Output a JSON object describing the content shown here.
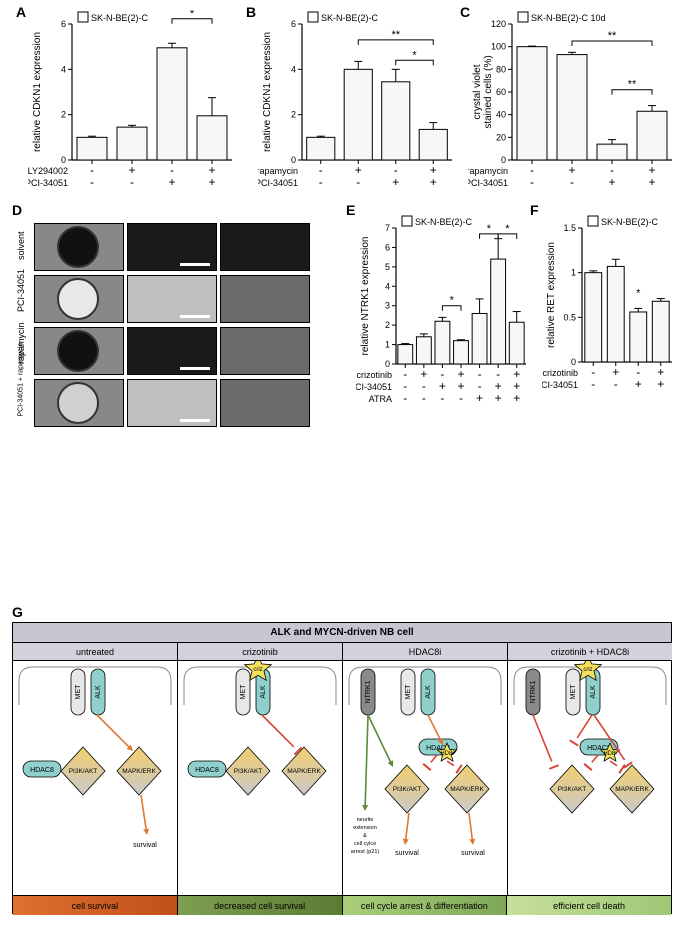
{
  "figure_width": 685,
  "figure_height": 926,
  "panels": {
    "A": {
      "label": "A",
      "cell_line": "SK-N-BE(2)-C",
      "type": "bar",
      "y_title": "relative CDKN1 expression",
      "ylim": [
        0,
        6
      ],
      "ytick_step": 2,
      "bar_fill": "#f7f7f7",
      "bar_stroke": "#000000",
      "categories": [
        "c1",
        "c2",
        "c3",
        "c4"
      ],
      "values": [
        1.0,
        1.45,
        4.95,
        1.95
      ],
      "errors": [
        0.05,
        0.08,
        0.2,
        0.8
      ],
      "treatments": [
        {
          "name": "LY294002",
          "signs": [
            "-",
            "+",
            "-",
            "+"
          ]
        },
        {
          "name": "PCI-34051",
          "signs": [
            "-",
            "-",
            "+",
            "+"
          ]
        }
      ],
      "sig": [
        {
          "from": 2,
          "to": 3,
          "text": "*"
        }
      ]
    },
    "B": {
      "label": "B",
      "cell_line": "SK-N-BE(2)-C",
      "type": "bar",
      "y_title": "relative CDKN1 expression",
      "ylim": [
        0,
        6
      ],
      "ytick_step": 2,
      "values": [
        1.0,
        4.0,
        3.45,
        1.35
      ],
      "errors": [
        0.05,
        0.35,
        0.55,
        0.3
      ],
      "treatments": [
        {
          "name": "rapamycin",
          "signs": [
            "-",
            "+",
            "-",
            "+"
          ]
        },
        {
          "name": "PCI-34051",
          "signs": [
            "-",
            "-",
            "+",
            "+"
          ]
        }
      ],
      "sig": [
        {
          "from": 1,
          "to": 3,
          "text": "**",
          "y": 5.3
        },
        {
          "from": 2,
          "to": 3,
          "text": "*",
          "y": 4.4
        }
      ]
    },
    "C": {
      "label": "C",
      "cell_line": "SK-N-BE(2)-C 10d",
      "type": "bar",
      "y_title": "crystal violet\nstained cells (%)",
      "ylim": [
        0,
        120
      ],
      "yticks": [
        0,
        20,
        40,
        60,
        80,
        100,
        120
      ],
      "values": [
        100,
        93,
        14,
        43
      ],
      "errors": [
        0.5,
        2,
        4,
        5
      ],
      "treatments": [
        {
          "name": "rapamycin",
          "signs": [
            "-",
            "+",
            "-",
            "+"
          ]
        },
        {
          "name": "PCI-34051",
          "signs": [
            "-",
            "-",
            "+",
            "+"
          ]
        }
      ],
      "sig": [
        {
          "from": 1,
          "to": 3,
          "text": "**",
          "y": 105
        },
        {
          "from": 2,
          "to": 3,
          "text": "**",
          "y": 62
        }
      ]
    },
    "D": {
      "label": "D",
      "rows": [
        "solvent",
        "PCI-34051",
        "rapamycin",
        "PCI-34051 +\nrapamycin"
      ]
    },
    "E": {
      "label": "E",
      "cell_line": "SK-N-BE(2)-C",
      "type": "bar",
      "y_title": "relative NTRK1 expression",
      "ylim": [
        0,
        7
      ],
      "yticks": [
        0,
        1,
        2,
        3,
        4,
        5,
        6,
        7
      ],
      "values": [
        1.0,
        1.4,
        2.2,
        1.2,
        2.6,
        5.4,
        2.15
      ],
      "errors": [
        0.05,
        0.15,
        0.2,
        0.05,
        0.75,
        1.05,
        0.55
      ],
      "treatments": [
        {
          "name": "crizotinib",
          "signs": [
            "-",
            "+",
            "-",
            "+",
            "-",
            "-",
            "+"
          ]
        },
        {
          "name": "PCI-34051",
          "signs": [
            "-",
            "-",
            "+",
            "+",
            "-",
            "+",
            "+"
          ]
        },
        {
          "name": "ATRA",
          "signs": [
            "-",
            "-",
            "-",
            "-",
            "+",
            "+",
            "+"
          ]
        }
      ],
      "sig": [
        {
          "from": 2,
          "to": 3,
          "text": "*",
          "y": 3.0
        },
        {
          "from": 4,
          "to": 5,
          "text": "*",
          "y": 6.7
        },
        {
          "from": 5,
          "to": 6,
          "text": "*",
          "y": 6.7
        }
      ]
    },
    "F": {
      "label": "F",
      "cell_line": "SK-N-BE(2)-C",
      "type": "bar",
      "y_title": "relative RET expression",
      "ylim": [
        0,
        1.5
      ],
      "yticks": [
        0,
        0.5,
        1.0,
        1.5
      ],
      "values": [
        1.0,
        1.07,
        0.56,
        0.68
      ],
      "errors": [
        0.02,
        0.08,
        0.04,
        0.03
      ],
      "treatments": [
        {
          "name": "crizotinib",
          "signs": [
            "-",
            "+",
            "-",
            "+"
          ]
        },
        {
          "name": "PCI-34051",
          "signs": [
            "-",
            "-",
            "+",
            "+"
          ]
        }
      ],
      "sig": [
        {
          "from": 2,
          "to": 2,
          "text": "*",
          "y": 0.72,
          "single": true
        }
      ]
    },
    "G": {
      "label": "G",
      "title": "ALK and MYCN-driven NB cell",
      "columns": [
        {
          "head": "untreated",
          "foot": "cell survival",
          "foot_gradient": [
            "#e07030",
            "#c05018"
          ]
        },
        {
          "head": "crizotinib",
          "foot": "decreased cell survival",
          "foot_gradient": [
            "#7e9e50",
            "#5b7c34"
          ]
        },
        {
          "head": "HDAC8i",
          "foot": "cell cycle arrest & differentiation",
          "foot_gradient": [
            "#a9cf7a",
            "#7ea858"
          ]
        },
        {
          "head": "crizotinib + HDAC8i",
          "foot": "efficient cell death",
          "foot_gradient": [
            "#c6e09a",
            "#9ec775"
          ]
        }
      ],
      "node_colors": {
        "MET": "#e8e8e8",
        "ALK": "#8fd0cc",
        "NTRK1": "#8a8a8a",
        "HDAC8": "#8fd0cc",
        "PI3K": "#f2ce6f",
        "MAPK": "#f2ce6f",
        "criz_star": "#f6e15a"
      },
      "node_labels": {
        "MET": "MET",
        "ALK": "ALK",
        "NTRK1": "NTRK1",
        "HDAC8": "HDAC8",
        "PI3K": "PI3K/AKT",
        "MAPK": "MAPK/ERK",
        "HD8i": "HD8i",
        "criz": "criz",
        "survival": "survival",
        "diff_text": "neurite\nextension\n&\ncell cylce\narrest (p21)"
      }
    }
  },
  "style": {
    "bar_fill": "#f7f7f7",
    "bar_stroke": "#000000",
    "background": "#ffffff",
    "font_family": "Arial",
    "label_fontsize": 14,
    "axis_fontsize": 9,
    "treat_fontsize": 9
  }
}
